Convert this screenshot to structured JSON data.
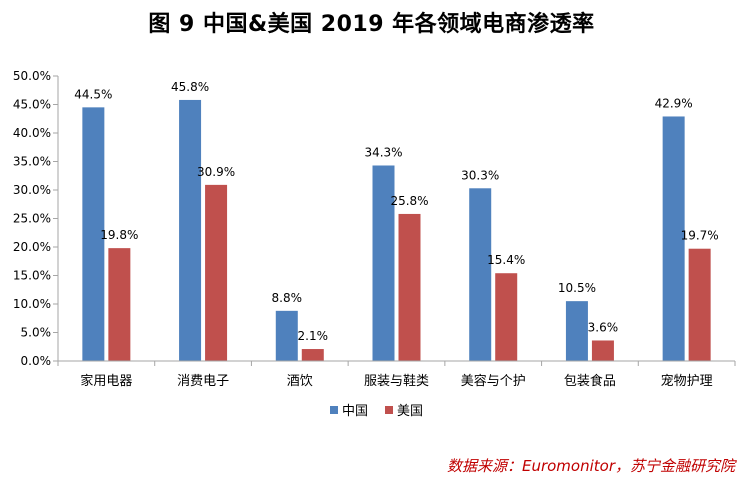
{
  "title": "图 9    中国&美国 2019 年各领域电商渗透率",
  "source": "数据来源：Euromonitor，苏宁金融研究院",
  "colors": {
    "china": "#4f81bd",
    "usa": "#c0504d",
    "axis": "#a6a6a6"
  },
  "chart_data": {
    "type": "bar",
    "categories": [
      "家用电器",
      "消费电子",
      "酒饮",
      "服装与鞋类",
      "美容与个护",
      "包装食品",
      "宠物护理"
    ],
    "series": [
      {
        "name": "中国",
        "values": [
          44.5,
          45.8,
          8.8,
          34.3,
          30.3,
          10.5,
          42.9
        ],
        "labels": [
          "44.5%",
          "45.8%",
          "8.8%",
          "34.3%",
          "30.3%",
          "10.5%",
          "42.9%"
        ]
      },
      {
        "name": "美国",
        "values": [
          19.8,
          30.9,
          2.1,
          25.8,
          15.4,
          3.6,
          19.7
        ],
        "labels": [
          "19.8%",
          "30.9%",
          "2.1%",
          "25.8%",
          "15.4%",
          "3.6%",
          "19.7%"
        ]
      }
    ],
    "ylim": [
      0,
      50
    ],
    "yticks": [
      "0.0%",
      "5.0%",
      "10.0%",
      "15.0%",
      "20.0%",
      "25.0%",
      "30.0%",
      "35.0%",
      "40.0%",
      "45.0%",
      "50.0%"
    ],
    "legend": [
      "中国",
      "美国"
    ],
    "legend_position": "bottom-center",
    "grid": false
  }
}
